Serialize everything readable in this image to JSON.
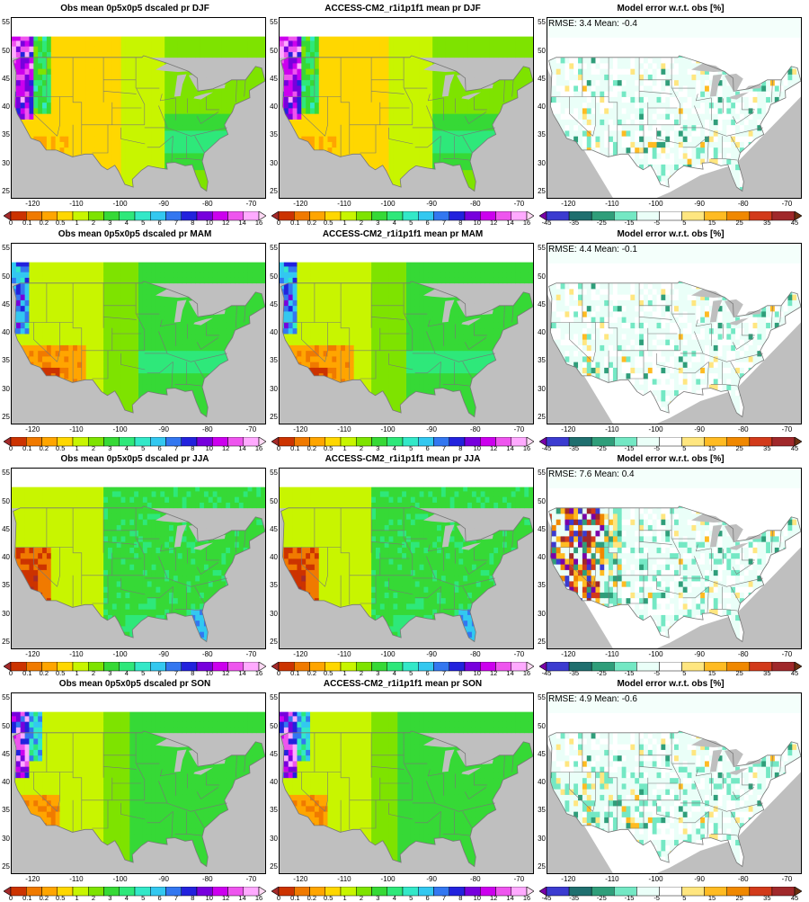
{
  "rows": [
    {
      "season": "DJF",
      "panels": [
        {
          "title": "Obs mean 0p5x0p5 dscaled pr DJF",
          "kind": "mean",
          "stat": ""
        },
        {
          "title": "ACCESS-CM2_r1i1p1f1 mean pr DJF",
          "kind": "mean",
          "stat": ""
        },
        {
          "title": "Model error w.r.t. obs [%]",
          "kind": "error",
          "stat": "RMSE: 3.4  Mean: -0.4"
        }
      ]
    },
    {
      "season": "MAM",
      "panels": [
        {
          "title": "Obs mean 0p5x0p5 dscaled pr MAM",
          "kind": "mean",
          "stat": ""
        },
        {
          "title": "ACCESS-CM2_r1i1p1f1 mean pr MAM",
          "kind": "mean",
          "stat": ""
        },
        {
          "title": "Model error w.r.t. obs [%]",
          "kind": "error",
          "stat": "RMSE: 4.4  Mean: -0.1"
        }
      ]
    },
    {
      "season": "JJA",
      "panels": [
        {
          "title": "Obs mean 0p5x0p5 dscaled pr JJA",
          "kind": "mean",
          "stat": ""
        },
        {
          "title": "ACCESS-CM2_r1i1p1f1 mean pr JJA",
          "kind": "mean",
          "stat": ""
        },
        {
          "title": "Model error w.r.t. obs [%]",
          "kind": "error",
          "stat": "RMSE: 7.6  Mean: 0.4"
        }
      ]
    },
    {
      "season": "SON",
      "panels": [
        {
          "title": "Obs mean 0p5x0p5 dscaled pr SON",
          "kind": "mean",
          "stat": ""
        },
        {
          "title": "ACCESS-CM2_r1i1p1f1 mean pr SON",
          "kind": "mean",
          "stat": ""
        },
        {
          "title": "Model error w.r.t. obs [%]",
          "kind": "error",
          "stat": "RMSE: 4.9  Mean: -0.6"
        }
      ]
    }
  ],
  "axes": {
    "lat_ticks": [
      "55",
      "50",
      "45",
      "40",
      "35",
      "30",
      "25"
    ],
    "lon_ticks": [
      "-120",
      "-110",
      "-100",
      "-90",
      "-80",
      "-70"
    ]
  },
  "mean_colorbar": {
    "labels": [
      "0",
      "0.1",
      "0.2",
      "0.5",
      "1",
      "2",
      "3",
      "4",
      "5",
      "6",
      "7",
      "8",
      "10",
      "12",
      "14",
      "16"
    ],
    "colors": [
      "#a52a2a",
      "#cc3300",
      "#f07a00",
      "#ffa500",
      "#ffd700",
      "#c8f500",
      "#7ee300",
      "#36d936",
      "#2ee87a",
      "#33e8c8",
      "#33c8f0",
      "#3377f0",
      "#2222dd",
      "#7700dd",
      "#cc00ee",
      "#ee55ee",
      "#ffaaff",
      "#ffd9f4"
    ]
  },
  "error_colorbar": {
    "labels": [
      "-45",
      "-35",
      "-25",
      "-15",
      "-5",
      "5",
      "15",
      "25",
      "35",
      "45"
    ],
    "colors": [
      "#7a00a8",
      "#3b3bd0",
      "#1f6f6f",
      "#2f9e7a",
      "#74e8c4",
      "#eafff8",
      "#ffffff",
      "#ffe680",
      "#ffbb22",
      "#f08800",
      "#d23a1a",
      "#a0282a",
      "#6b3010"
    ]
  },
  "colors": {
    "land_mask": "#bfbfbf",
    "border_lines": "#777777"
  }
}
